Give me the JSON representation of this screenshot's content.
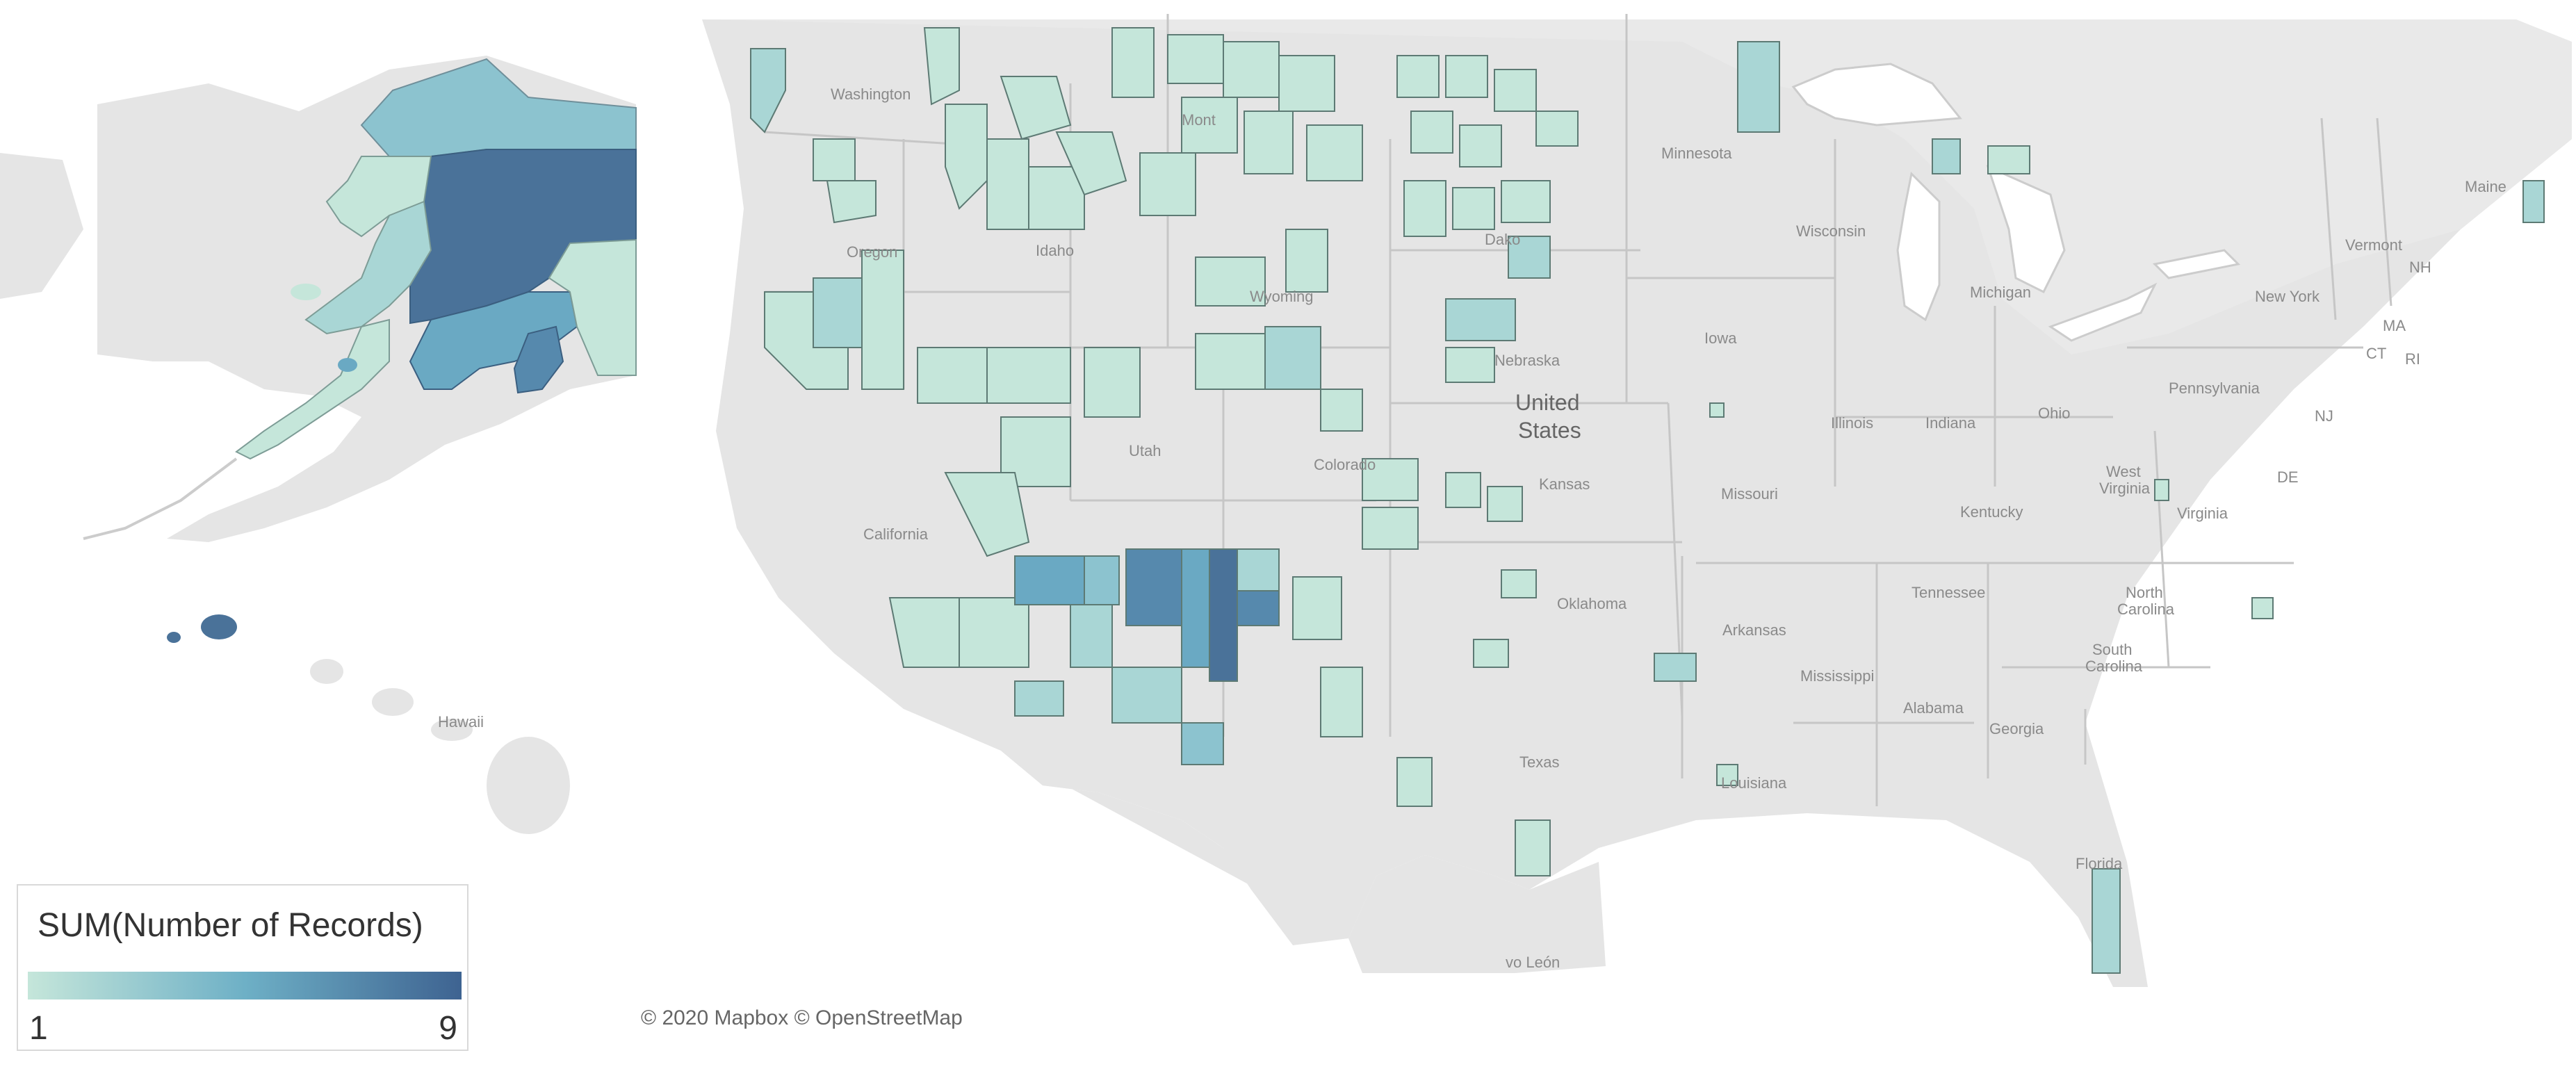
{
  "map": {
    "state_labels": {
      "washington": "Washington",
      "oregon": "Oregon",
      "idaho": "Idaho",
      "montana": "Mont",
      "wyoming": "Wyoming",
      "nevada": "",
      "utah": "Utah",
      "colorado": "Colorado",
      "california": "California",
      "arizona": "",
      "nebraska": "Nebraska",
      "dakota": "Dako",
      "kansas": "Kansas",
      "oklahoma": "Oklahoma",
      "texas": "Texas",
      "minnesota": "Minnesota",
      "wisconsin": "Wisconsin",
      "michigan": "Michigan",
      "iowa": "Iowa",
      "illinois": "Illinois",
      "indiana": "Indiana",
      "ohio": "Ohio",
      "pennsylvania": "Pennsylvania",
      "new_york": "New York",
      "missouri": "Missouri",
      "kentucky": "Kentucky",
      "west_virginia_1": "West",
      "west_virginia_2": "Virginia",
      "virginia": "Virginia",
      "tennessee": "Tennessee",
      "north_carolina_1": "North",
      "north_carolina_2": "Carolina",
      "south_carolina_1": "South",
      "south_carolina_2": "Carolina",
      "arkansas": "Arkansas",
      "mississippi": "Mississippi",
      "alabama": "Alabama",
      "georgia": "Georgia",
      "louisiana": "Louisiana",
      "florida": "Florida",
      "maine": "Maine",
      "vermont": "Vermont",
      "nh": "NH",
      "ma": "MA",
      "ct": "CT",
      "ri": "RI",
      "nj": "NJ",
      "de": "DE",
      "hawaii": "Hawaii",
      "nuevo_leon": "vo León"
    },
    "country_label_1": "United",
    "country_label_2": "States",
    "attribution": "© 2020 Mapbox © OpenStreetMap"
  },
  "legend": {
    "title": "SUM(Number of Records)",
    "min": "1",
    "max": "9",
    "color_low": "#c5e6da",
    "color_mid": "#6eb0c6",
    "color_high": "#3e6391"
  },
  "colors": {
    "land": "#e5e5e5",
    "water": "#ffffff",
    "border": "#bdbdbd",
    "shade_1": "#c5e6da",
    "shade_2": "#a9d6d5",
    "shade_3": "#8cc3cf",
    "shade_4": "#6aa9c3",
    "shade_5": "#5689ad",
    "shade_6": "#4a7299"
  }
}
